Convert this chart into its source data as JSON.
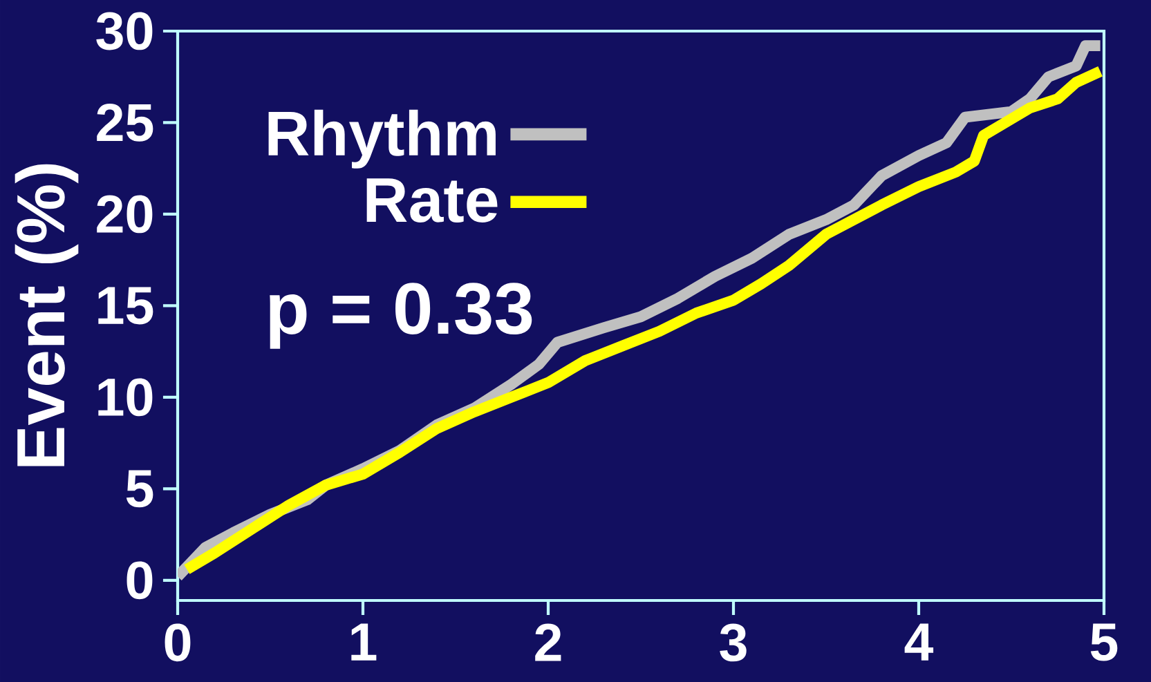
{
  "chart_data": {
    "type": "line",
    "ylabel": "Event (%)",
    "xlim": [
      0,
      5
    ],
    "xticks": [
      0,
      1,
      2,
      3,
      4,
      5
    ],
    "ylim": [
      -1.1,
      30
    ],
    "yticks": [
      0,
      5,
      10,
      15,
      20,
      25,
      30
    ],
    "legend": "top left",
    "grid": false,
    "marker": "none",
    "line_style": "solid",
    "annotations": [
      "p = 0.33"
    ],
    "series": [
      {
        "name": "Rhythm",
        "color": "#c0c0c0",
        "x": [
          0,
          0.15,
          0.3,
          0.5,
          0.7,
          0.8,
          1.0,
          1.2,
          1.4,
          1.6,
          1.8,
          1.95,
          2.05,
          2.3,
          2.5,
          2.7,
          2.9,
          3.1,
          3.3,
          3.5,
          3.65,
          3.8,
          4.0,
          4.15,
          4.25,
          4.5,
          4.6,
          4.7,
          4.85,
          4.9,
          4.98
        ],
        "values": [
          0.2,
          1.8,
          2.6,
          3.6,
          4.4,
          5.2,
          6.1,
          7.1,
          8.5,
          9.4,
          10.7,
          11.8,
          13.0,
          13.8,
          14.4,
          15.4,
          16.6,
          17.6,
          18.9,
          19.7,
          20.5,
          22.1,
          23.2,
          23.9,
          25.3,
          25.6,
          26.3,
          27.5,
          28.1,
          29.2,
          29.2
        ]
      },
      {
        "name": "Rate",
        "color": "#ffff00",
        "x": [
          0.05,
          0.2,
          0.4,
          0.6,
          0.8,
          1.0,
          1.2,
          1.4,
          1.6,
          1.8,
          2.0,
          2.2,
          2.4,
          2.6,
          2.8,
          3.0,
          3.15,
          3.3,
          3.5,
          3.65,
          3.8,
          4.0,
          4.2,
          4.3,
          4.35,
          4.6,
          4.75,
          4.85,
          4.98
        ],
        "values": [
          0.6,
          1.5,
          2.8,
          4.1,
          5.2,
          5.8,
          7.0,
          8.3,
          9.2,
          10.0,
          10.8,
          12.0,
          12.8,
          13.6,
          14.6,
          15.3,
          16.2,
          17.2,
          18.9,
          19.7,
          20.5,
          21.5,
          22.3,
          22.9,
          24.3,
          25.8,
          26.3,
          27.2,
          27.8
        ]
      }
    ]
  }
}
